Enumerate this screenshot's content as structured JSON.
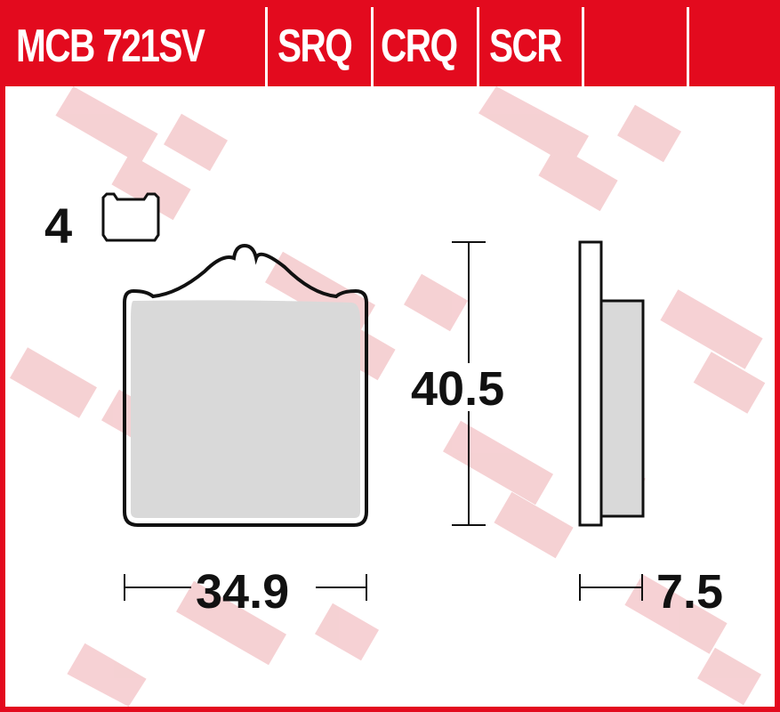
{
  "header": {
    "part_number": "MCB 721SV",
    "compounds": [
      "SRQ",
      "CRQ",
      "SCR",
      "",
      ""
    ]
  },
  "pad": {
    "quantity": "4",
    "icon": "brake-pad-icon",
    "height": "40.5",
    "width": "34.9",
    "thickness": "7.5"
  },
  "colors": {
    "brand_red": "#e30a1e",
    "friction_gray": "#d9d9d9",
    "watermark": "#f4c9cc"
  }
}
